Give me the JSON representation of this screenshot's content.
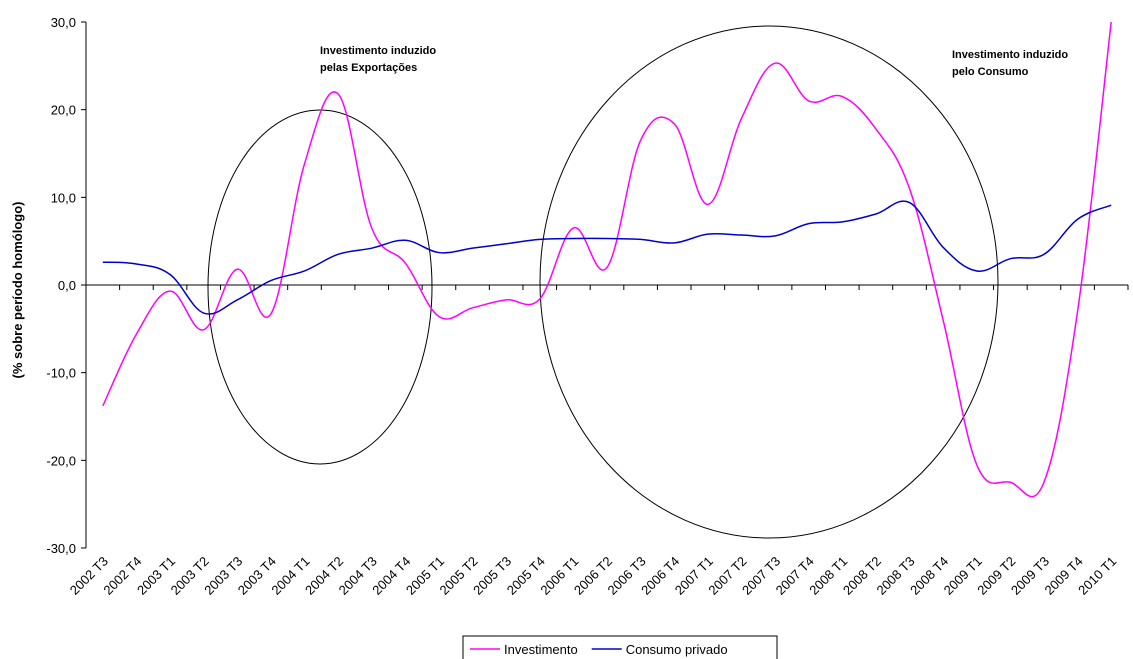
{
  "chart_data": {
    "type": "line",
    "y_label": "(% sobre período homólogo)",
    "categories": [
      "2002 T3",
      "2002 T4",
      "2003 T1",
      "2003 T2",
      "2003 T3",
      "2003 T4",
      "2004 T1",
      "2004 T2",
      "2004 T3",
      "2004 T4",
      "2005 T1",
      "2005 T2",
      "2005 T3",
      "2005 T4",
      "2006 T1",
      "2006 T2",
      "2006 T3",
      "2006 T4",
      "2007 T1",
      "2007 T2",
      "2007 T3",
      "2007 T4",
      "2008 T1",
      "2008 T2",
      "2008 T3",
      "2008 T4",
      "2009 T1",
      "2009 T2",
      "2009 T3",
      "2009 T4",
      "2010 T1"
    ],
    "series": [
      {
        "name": "Investimento",
        "color": "#ff00ff",
        "values": [
          -13.8,
          -5.6,
          -0.7,
          -5.1,
          1.8,
          -3.3,
          13.8,
          21.8,
          6.5,
          2.5,
          -3.6,
          -2.6,
          -1.7,
          -1.6,
          6.5,
          2.0,
          16.5,
          18.4,
          9.2,
          19.0,
          25.3,
          21.0,
          21.5,
          17.8,
          11.0,
          -4.0,
          -20.5,
          -22.5,
          -22.5,
          -3.0,
          30.0
        ]
      },
      {
        "name": "Consumo privado",
        "color": "#0000cc",
        "values": [
          2.6,
          2.4,
          1.2,
          -3.2,
          -1.7,
          0.5,
          1.6,
          3.5,
          4.2,
          5.1,
          3.7,
          4.2,
          4.7,
          5.2,
          5.3,
          5.3,
          5.2,
          4.8,
          5.8,
          5.7,
          5.6,
          7.0,
          7.2,
          8.1,
          9.4,
          4.3,
          1.6,
          3.0,
          3.5,
          7.5,
          9.1
        ]
      }
    ],
    "ylim": [
      -30,
      30
    ],
    "yticks": [
      {
        "value": -30,
        "label": "-30,0"
      },
      {
        "value": -20,
        "label": "-20,0"
      },
      {
        "value": -10,
        "label": "-10,0"
      },
      {
        "value": 0,
        "label": "0,0"
      },
      {
        "value": 10,
        "label": "10,0"
      },
      {
        "value": 20,
        "label": "20,0"
      },
      {
        "value": 30,
        "label": "30,0"
      }
    ],
    "annotations": [
      {
        "lines": [
          "Investimento induzido",
          "pelas Exportações"
        ]
      },
      {
        "lines": [
          "Investimento induzido",
          "pelo Consumo"
        ]
      }
    ],
    "grid": false,
    "legend": "bottom"
  }
}
